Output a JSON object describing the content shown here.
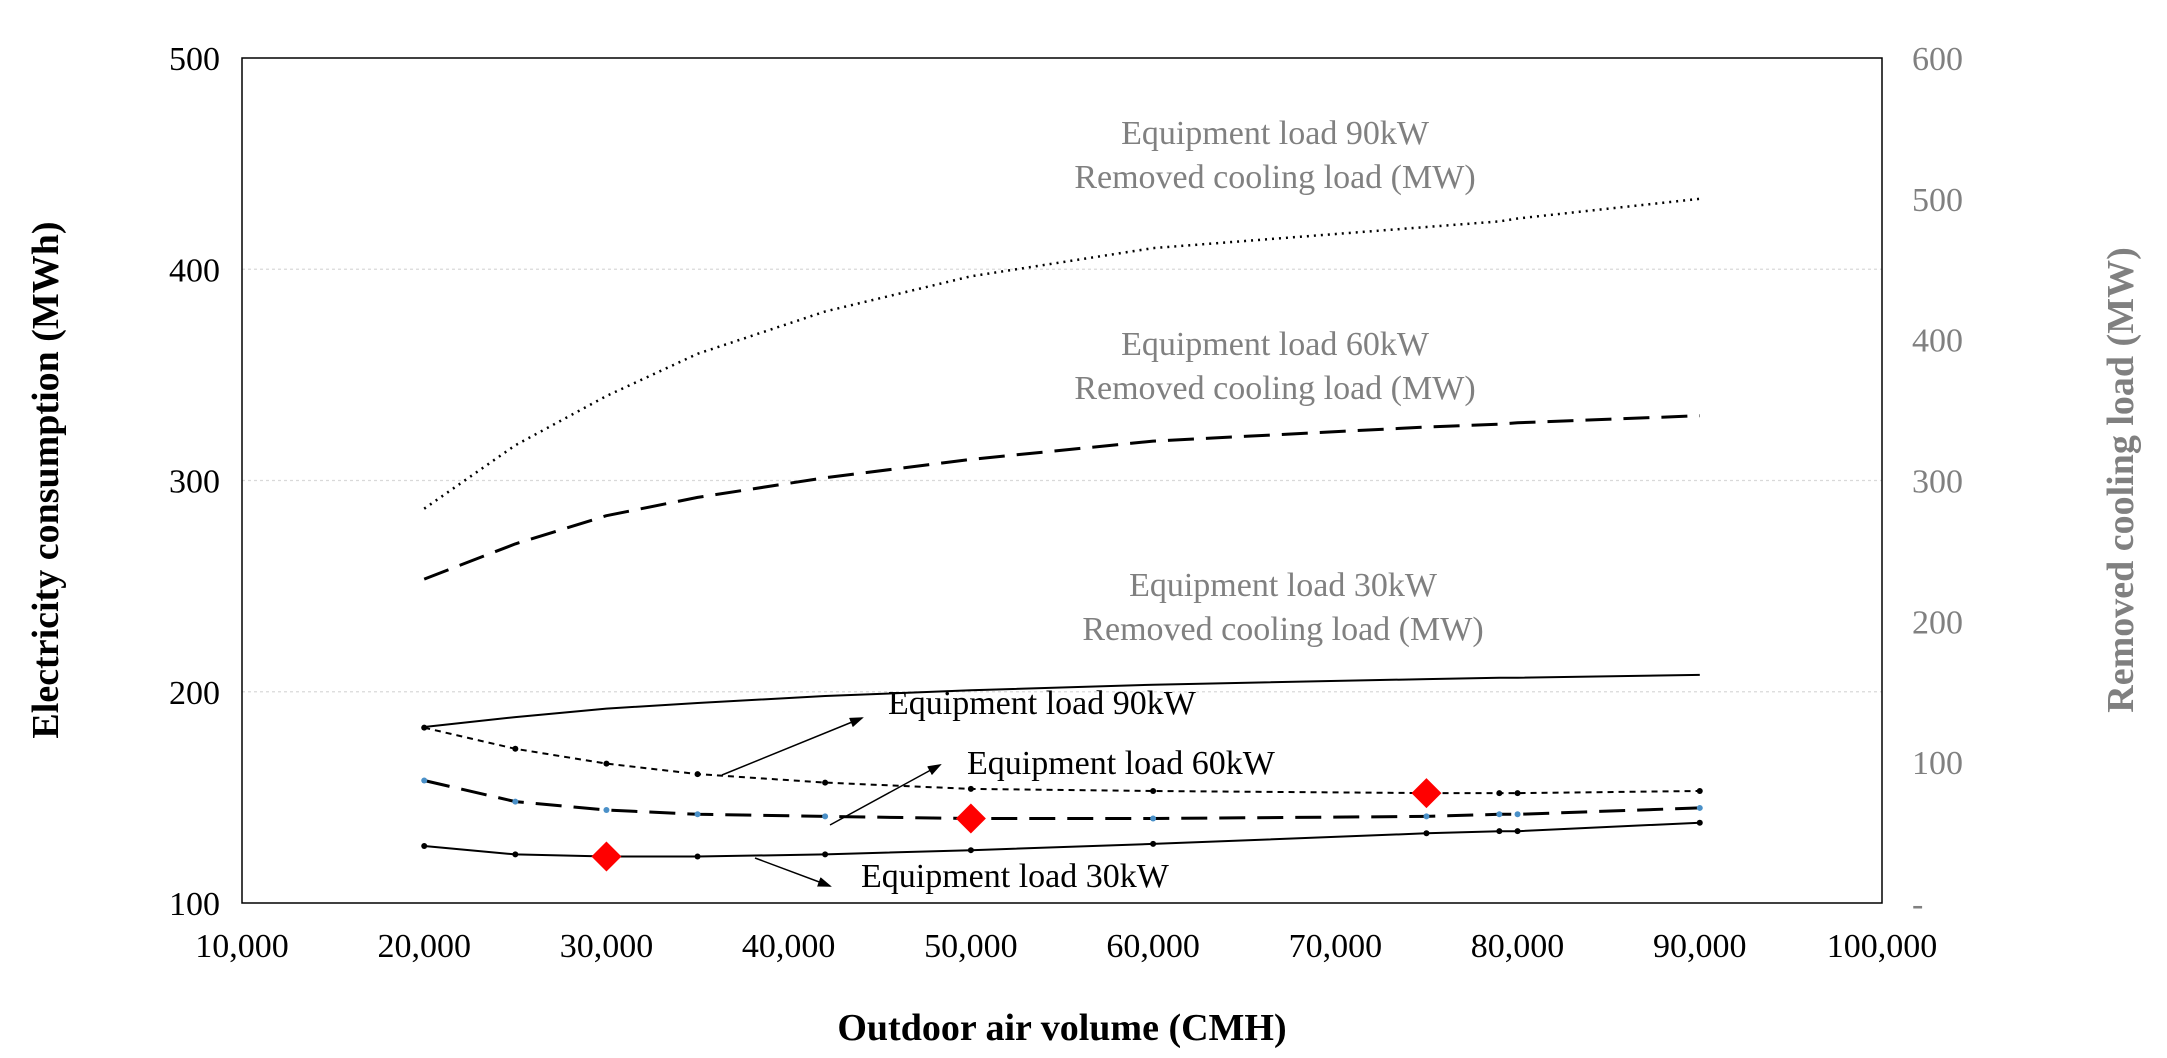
{
  "chart_data": {
    "type": "line",
    "title": "",
    "xlabel": "Outdoor air volume (CMH)",
    "ylabel": "Electricity consumption (MWh)",
    "y2label": "Removed cooling load (MW)",
    "xlim": [
      10000,
      100000
    ],
    "ylim": [
      100,
      500
    ],
    "y2lim": [
      0,
      600
    ],
    "x_ticks": [
      "10,000",
      "20,000",
      "30,000",
      "40,000",
      "50,000",
      "60,000",
      "70,000",
      "80,000",
      "90,000",
      "100,000"
    ],
    "y_ticks": [
      "100",
      "200",
      "300",
      "400",
      "500"
    ],
    "y2_ticks": [
      "-",
      "100",
      "200",
      "300",
      "400",
      "500",
      "600"
    ],
    "grid": "horizontal",
    "colors": {
      "axis": "#000000",
      "grid": "#d9d9d9",
      "secondary": "#808080",
      "marker": "#ff0000",
      "point": "#4a90c8"
    },
    "x": [
      20000,
      25000,
      30000,
      35000,
      42000,
      50000,
      60000,
      75000,
      79000,
      80000,
      90000
    ],
    "series": [
      {
        "name": "Equipment load 90kW Removed cooling load (MW)",
        "axis": "right",
        "style": "dotted",
        "values": [
          280,
          325,
          360,
          390,
          420,
          445,
          465,
          480,
          484,
          486,
          500
        ]
      },
      {
        "name": "Equipment load 60kW Removed cooling load (MW)",
        "axis": "right",
        "style": "long-dash",
        "values": [
          230,
          255,
          275,
          288,
          302,
          315,
          328,
          338,
          340,
          341,
          346
        ]
      },
      {
        "name": "Equipment load 30kW Removed cooling load (MW)",
        "axis": "right",
        "style": "solid",
        "values": [
          125,
          132,
          138,
          142,
          147,
          151,
          155,
          159,
          160,
          160,
          162
        ]
      },
      {
        "name": "Equipment load 90kW",
        "axis": "left",
        "style": "short-dash",
        "point_color": "#000000",
        "values": [
          183,
          173,
          166,
          161,
          157,
          154,
          153,
          152,
          152,
          152,
          153
        ]
      },
      {
        "name": "Equipment load 60kW",
        "axis": "left",
        "style": "long-dash",
        "point_color": "#4a90c8",
        "values": [
          158,
          148,
          144,
          142,
          141,
          140,
          140,
          141,
          142,
          142,
          145
        ]
      },
      {
        "name": "Equipment load 30kW",
        "axis": "left",
        "style": "solid",
        "point_color": "#000000",
        "values": [
          127,
          123,
          122,
          122,
          123,
          125,
          128,
          133,
          134,
          134,
          138
        ]
      }
    ],
    "optimum_points": [
      {
        "series": "Equipment load 30kW",
        "x": 30000,
        "y": 122
      },
      {
        "series": "Equipment load 60kW",
        "x": 50000,
        "y": 140
      },
      {
        "series": "Equipment load 90kW",
        "x": 75000,
        "y": 152
      }
    ],
    "annotations_gray": [
      {
        "lines": [
          "Equipment load  90kW",
          "Removed cooling load (MW)"
        ]
      },
      {
        "lines": [
          "Equipment load  60kW",
          "Removed cooling load (MW)"
        ]
      },
      {
        "lines": [
          "Equipment load  30kW",
          "Removed cooling load (MW)"
        ]
      }
    ],
    "annotations_black": [
      {
        "text": "Equipment load  90kW"
      },
      {
        "text": "Equipment load  60kW"
      },
      {
        "text": "Equipment load  30kW"
      }
    ]
  }
}
